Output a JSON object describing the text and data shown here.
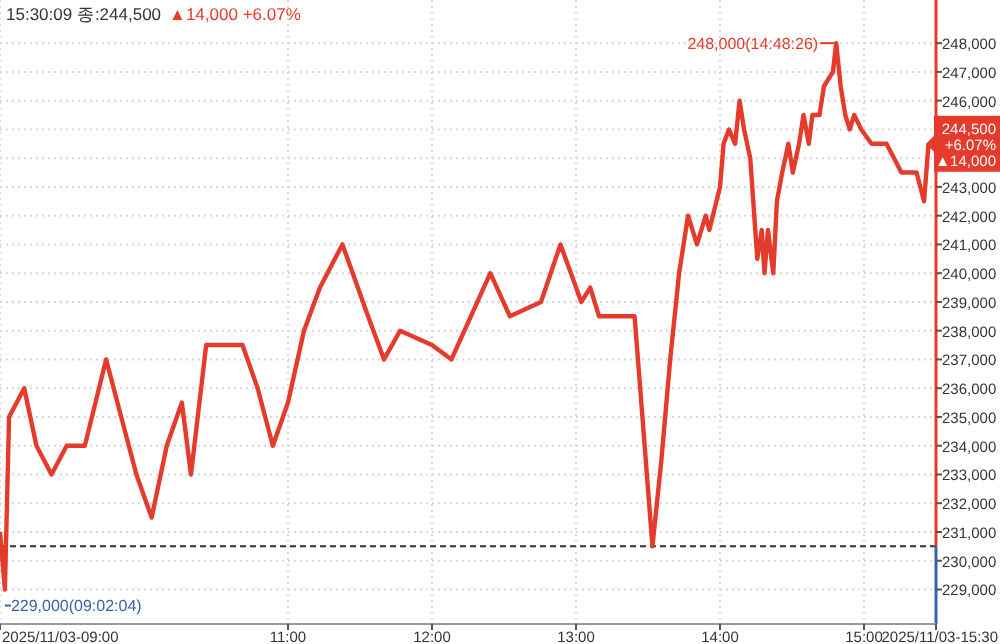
{
  "chart_data": {
    "type": "line",
    "title": "15:30:09 종:244,500",
    "subtitle": "▲14,000 +6.07%",
    "xlim": [
      9,
      15.5
    ],
    "ylim": [
      227800,
      249500
    ],
    "xticks": [
      {
        "value": 9,
        "label": null
      },
      {
        "value": 11,
        "label": "11:00"
      },
      {
        "value": 12,
        "label": "12:00"
      },
      {
        "value": 13,
        "label": "13:00"
      },
      {
        "value": 14,
        "label": "14:00"
      },
      {
        "value": 15,
        "label": "15:00"
      },
      {
        "value": 15.5,
        "label": null
      }
    ],
    "yticks": [
      {
        "value": 229000,
        "label": "229,000"
      },
      {
        "value": 230000,
        "label": "230,000"
      },
      {
        "value": 231000,
        "label": "231,000"
      },
      {
        "value": 232000,
        "label": "232,000"
      },
      {
        "value": 233000,
        "label": "233,000"
      },
      {
        "value": 234000,
        "label": "234,000"
      },
      {
        "value": 235000,
        "label": "235,000"
      },
      {
        "value": 236000,
        "label": "236,000"
      },
      {
        "value": 237000,
        "label": "237,000"
      },
      {
        "value": 238000,
        "label": "238,000"
      },
      {
        "value": 239000,
        "label": "239,000"
      },
      {
        "value": 240000,
        "label": "240,000"
      },
      {
        "value": 241000,
        "label": "241,000"
      },
      {
        "value": 242000,
        "label": "242,000"
      },
      {
        "value": 243000,
        "label": "243,000"
      },
      {
        "value": 244000,
        "label": null
      },
      {
        "value": 245000,
        "label": null
      },
      {
        "value": 246000,
        "label": "246,000"
      },
      {
        "value": 247000,
        "label": "247,000"
      },
      {
        "value": 248000,
        "label": "248,000"
      }
    ],
    "grid": true,
    "marker": "none",
    "line_style": "solid",
    "series": [
      {
        "color": "#e53b2c",
        "x": [
          9.0,
          9.034,
          9.063,
          9.168,
          9.253,
          9.358,
          9.463,
          9.589,
          9.737,
          9.842,
          9.947,
          10.053,
          10.158,
          10.263,
          10.326,
          10.432,
          10.516,
          10.684,
          10.789,
          10.895,
          11.0,
          11.111,
          11.222,
          11.378,
          11.556,
          11.667,
          11.778,
          12.0,
          12.135,
          12.27,
          12.405,
          12.541,
          12.757,
          12.892,
          13.037,
          13.099,
          13.16,
          13.284,
          13.407,
          13.469,
          13.531,
          13.593,
          13.654,
          13.716,
          13.778,
          13.84,
          13.901,
          13.926,
          14.0,
          14.025,
          14.062,
          14.105,
          14.136,
          14.167,
          14.21,
          14.259,
          14.29,
          14.309,
          14.333,
          14.37,
          14.395,
          14.432,
          14.475,
          14.506,
          14.549,
          14.58,
          14.617,
          14.642,
          14.691,
          14.722,
          14.784,
          14.807,
          14.838,
          14.87,
          14.901,
          14.932,
          14.981,
          15.052,
          15.156,
          15.26,
          15.365,
          15.417,
          15.448
        ],
        "values": [
          231000,
          229000,
          235000,
          236000,
          234000,
          233000,
          234000,
          234000,
          237000,
          235000,
          233000,
          231500,
          234000,
          235500,
          233000,
          237500,
          237500,
          237500,
          236000,
          234000,
          235500,
          238000,
          239500,
          241000,
          238500,
          237000,
          238000,
          237500,
          237000,
          238500,
          240000,
          238500,
          239000,
          241000,
          239000,
          239500,
          238500,
          238500,
          238500,
          234500,
          230500,
          233500,
          237000,
          240000,
          242000,
          241000,
          242000,
          241500,
          243000,
          244500,
          245000,
          244500,
          246000,
          245000,
          244000,
          240500,
          241500,
          240000,
          241500,
          240000,
          242500,
          243500,
          244500,
          243500,
          244500,
          245500,
          244500,
          245500,
          245500,
          246500,
          247000,
          248000,
          246500,
          245500,
          245000,
          245500,
          245000,
          244500,
          244500,
          243500,
          243500,
          242500,
          244500
        ]
      }
    ],
    "ref_lines": [
      {
        "axis": "y",
        "value": 230500,
        "color": "#333333",
        "line_style": "dashed"
      }
    ],
    "annotations": [
      {
        "text": "248,000(14:48:26)",
        "x": 14.807,
        "y": 248000
      },
      {
        "text": "229,000(09:02:04)",
        "x": 9.034,
        "y": 229000
      },
      {
        "text": "244,500 +6.07% ▲14,000",
        "x": 15.448,
        "y": 244500
      },
      "2025/11/03-09:00",
      "2025/11/03-15:30"
    ]
  }
}
